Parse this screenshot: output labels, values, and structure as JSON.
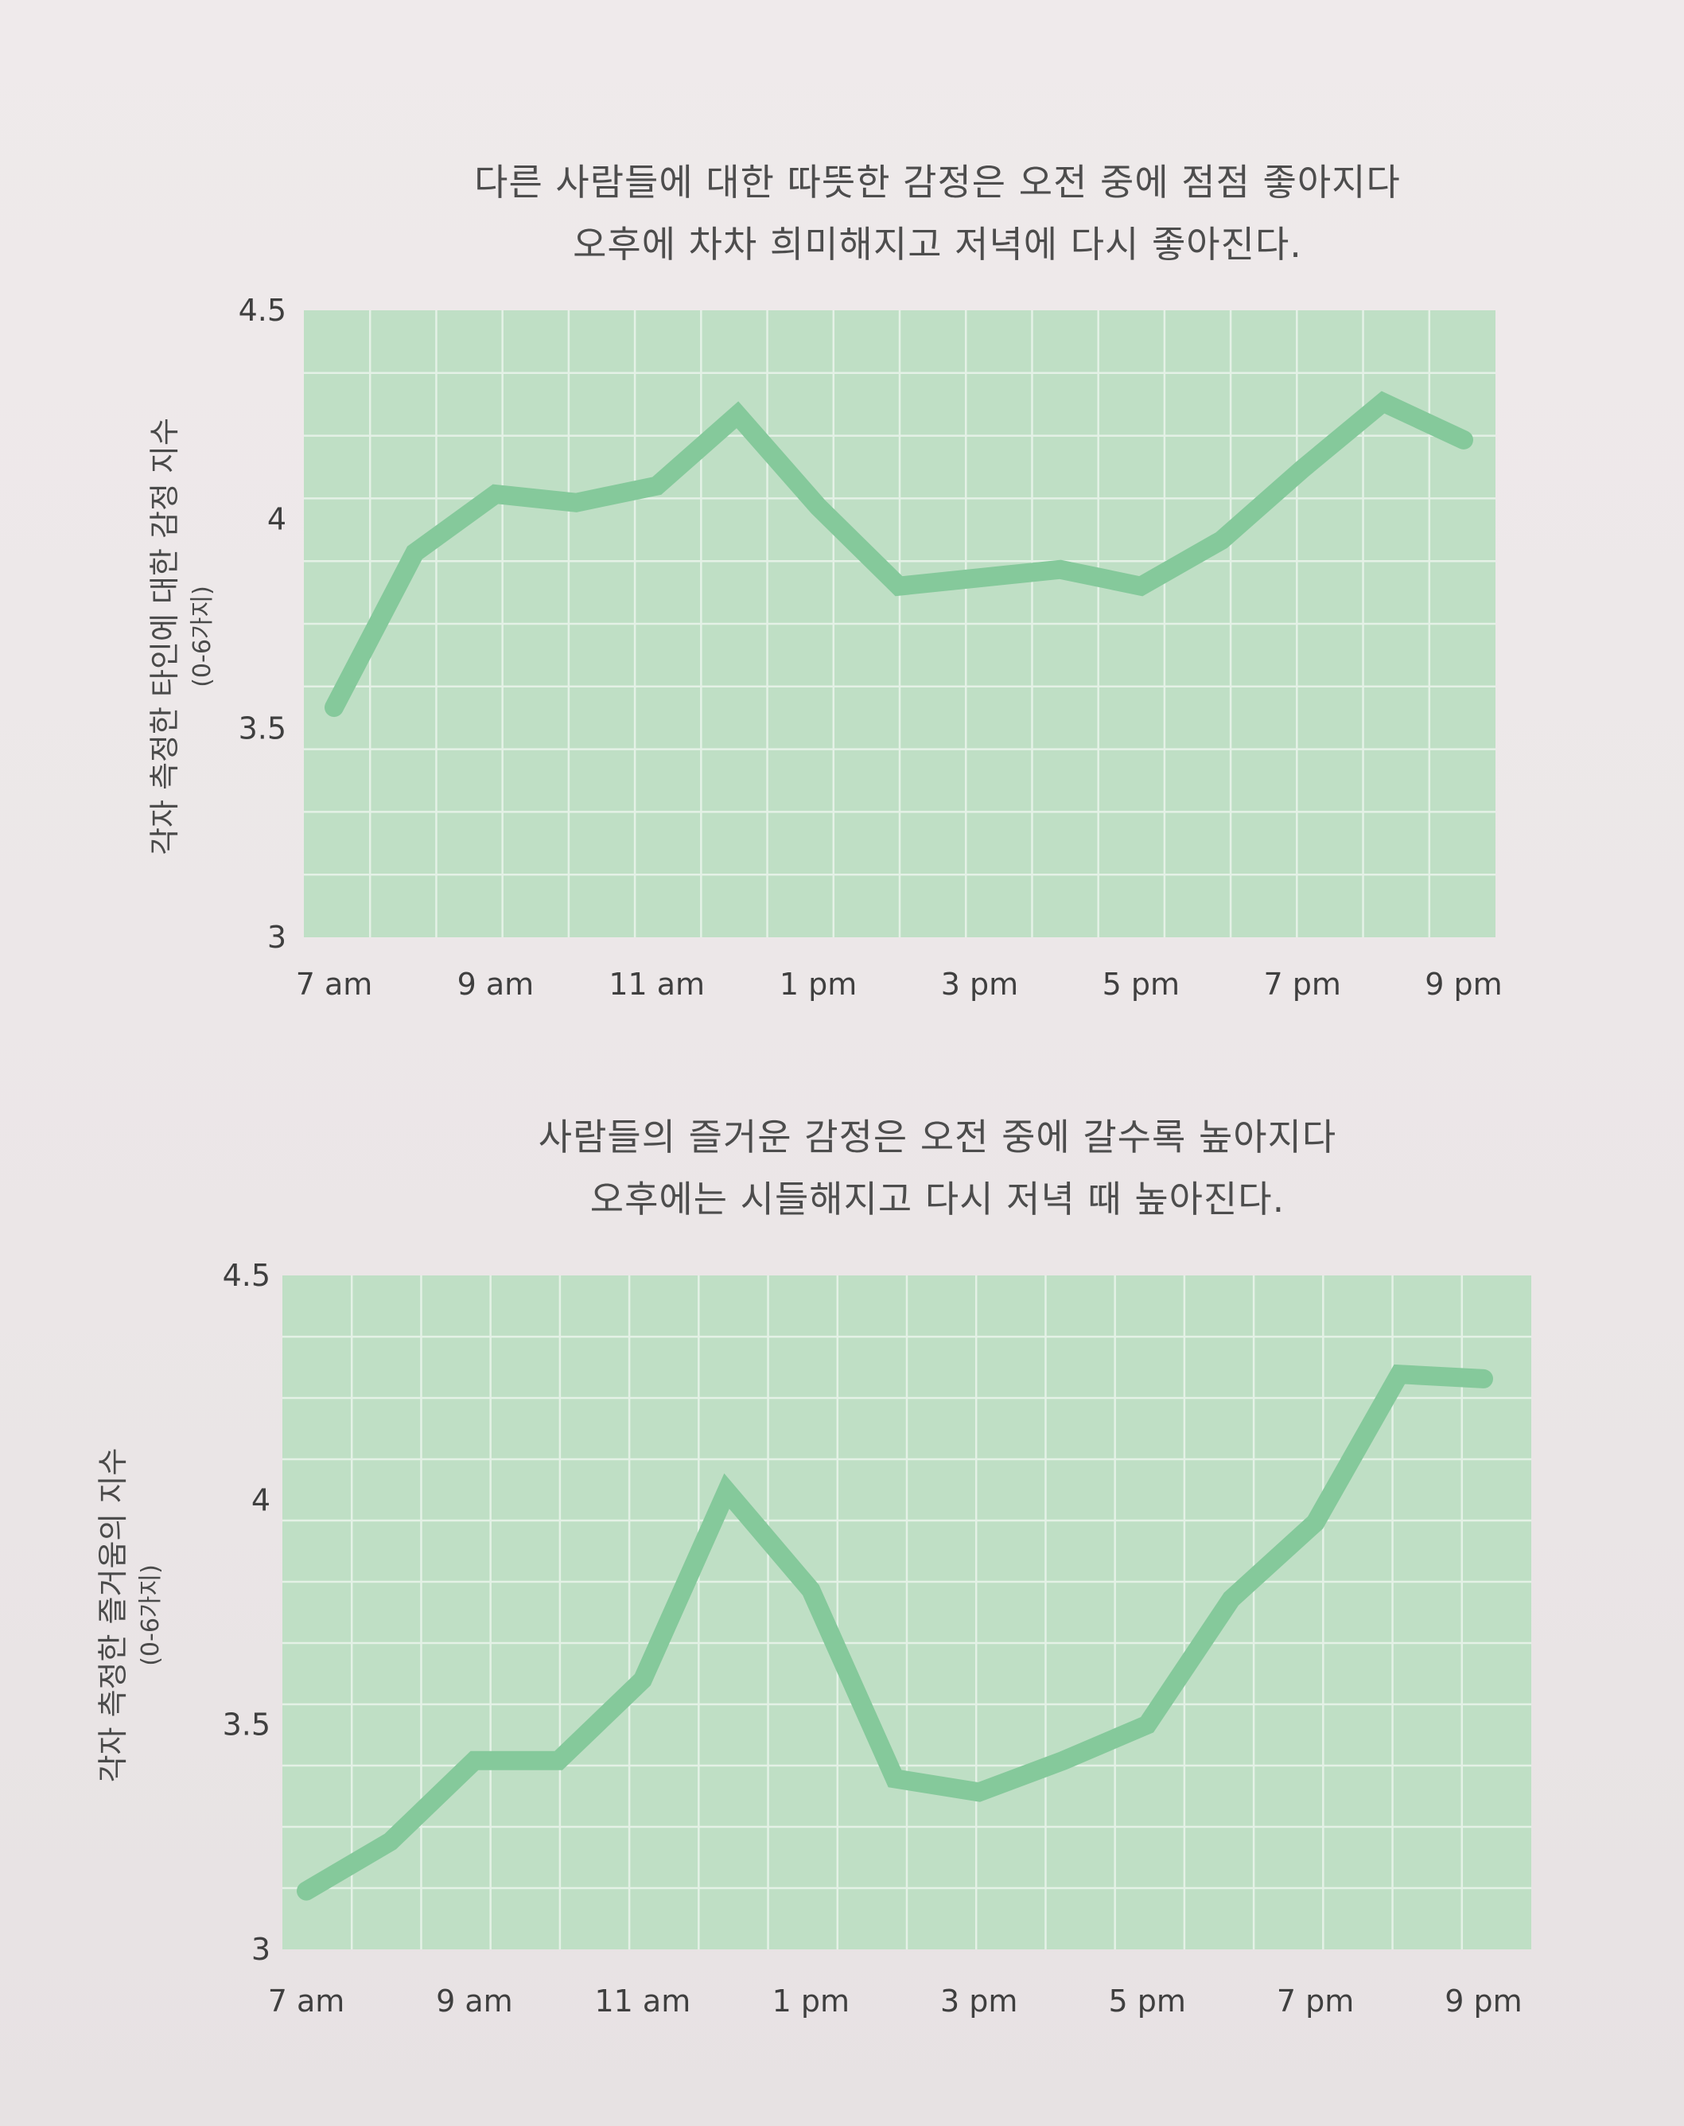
{
  "chart_data": [
    {
      "type": "line",
      "title_lines": [
        "다른 사람들에 대한 따뜻한 감정은 오전 중에 점점 좋아지다",
        "오후에 차차 희미해지고 저녁에 다시 좋아진다."
      ],
      "ylabel": "각자 측정한 타인에 대한 감정 지수",
      "ylabel_sub": "(0-6가지)",
      "x_tick_labels": [
        "7 am",
        "9 am",
        "11 am",
        "1 pm",
        "3 pm",
        "5 pm",
        "7 pm",
        "9 pm"
      ],
      "x": [
        7,
        8,
        9,
        10,
        11,
        12,
        13,
        14,
        15,
        16,
        17,
        18,
        19,
        20,
        21
      ],
      "y_ticks": [
        "3",
        "3.5",
        "4",
        "4.5"
      ],
      "ylim": [
        3,
        4.5
      ],
      "series": [
        {
          "values": [
            3.55,
            3.92,
            4.06,
            4.04,
            4.08,
            4.25,
            4.03,
            3.84,
            3.86,
            3.88,
            3.84,
            3.95,
            4.12,
            4.28,
            4.19
          ]
        }
      ],
      "grid": true,
      "colors": {
        "plot_bg": "#bfdfc5",
        "line": "#85c99b",
        "grid": "#e4f1e6"
      }
    },
    {
      "type": "line",
      "title_lines": [
        "사람들의 즐거운 감정은 오전 중에 갈수록 높아지다",
        "오후에는 시들해지고 다시 저녁 때 높아진다."
      ],
      "ylabel": "각자 측정한 즐거움의 지수",
      "ylabel_sub": "(0-6가지)",
      "x_tick_labels": [
        "7 am",
        "9 am",
        "11 am",
        "1 pm",
        "3 pm",
        "5 pm",
        "7 pm",
        "9 pm"
      ],
      "x": [
        7,
        8,
        9,
        10,
        11,
        12,
        13,
        14,
        15,
        16,
        17,
        18,
        19,
        20,
        21
      ],
      "y_ticks": [
        "3",
        "3.5",
        "4",
        "4.5"
      ],
      "ylim": [
        3,
        4.5
      ],
      "series": [
        {
          "values": [
            3.13,
            3.24,
            3.42,
            3.42,
            3.6,
            4.02,
            3.8,
            3.38,
            3.35,
            3.42,
            3.5,
            3.78,
            3.95,
            4.28,
            4.27
          ]
        }
      ],
      "grid": true,
      "colors": {
        "plot_bg": "#bfdfc5",
        "line": "#85c99b",
        "grid": "#e4f1e6"
      }
    }
  ]
}
